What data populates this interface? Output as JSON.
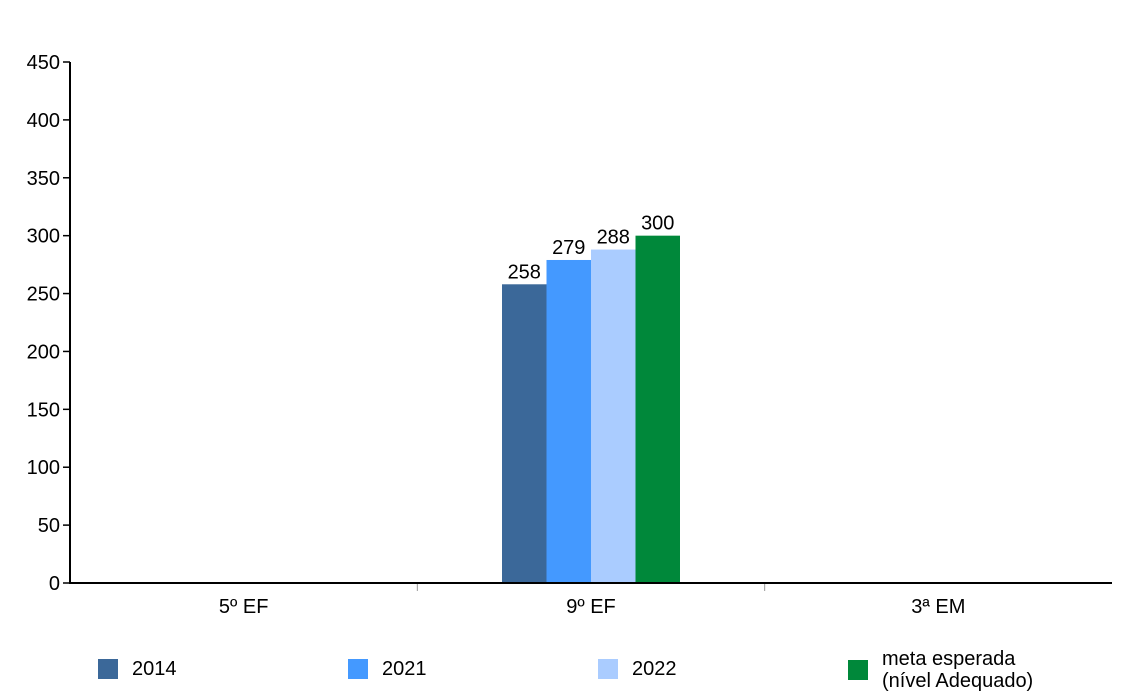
{
  "chart_data": {
    "type": "bar",
    "title": "",
    "xlabel": "",
    "ylabel": "",
    "categories": [
      "5º EF",
      "9º EF",
      "3ª EM"
    ],
    "ylim": [
      0,
      450
    ],
    "yticks": [
      0,
      50,
      100,
      150,
      200,
      250,
      300,
      350,
      400,
      450
    ],
    "grid": false,
    "legend_position": "bottom",
    "series": [
      {
        "name": "2014",
        "color": "#3b6899",
        "values": [
          null,
          258,
          null
        ]
      },
      {
        "name": "2021",
        "color": "#4499ff",
        "values": [
          null,
          279,
          null
        ]
      },
      {
        "name": "2022",
        "color": "#aaccff",
        "values": [
          null,
          288,
          null
        ]
      },
      {
        "name": "meta esperada\n(nível Adequado)",
        "color": "#00883a",
        "values": [
          null,
          300,
          null
        ]
      }
    ]
  }
}
